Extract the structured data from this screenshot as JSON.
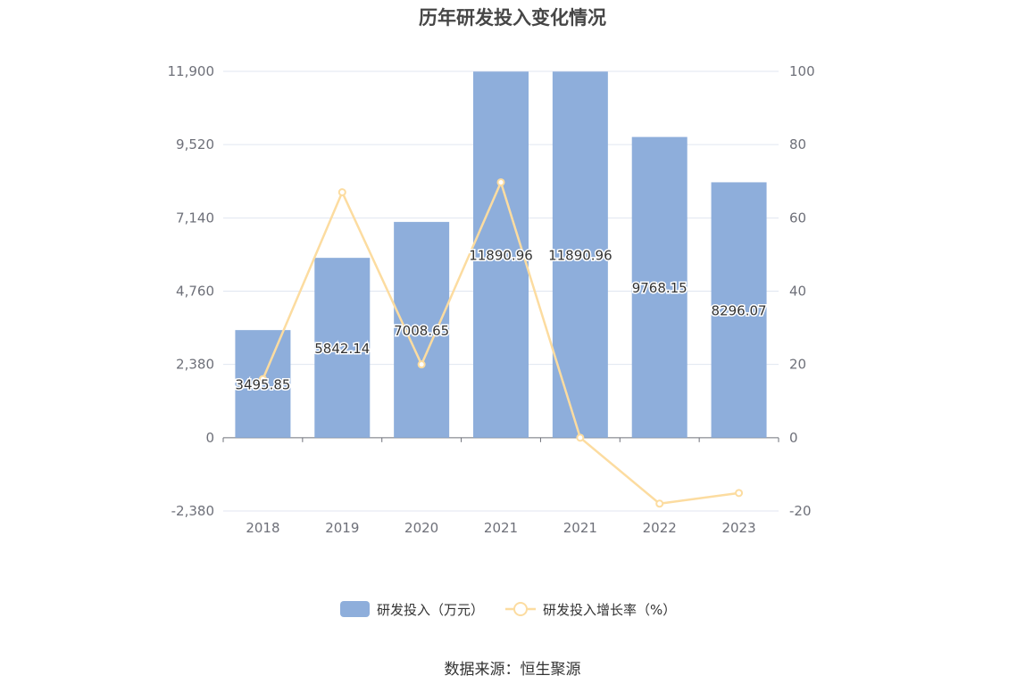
{
  "chart_data": {
    "type": "bar",
    "title": "历年研发投入变化情况",
    "categories": [
      "2018",
      "2019",
      "2020",
      "2021",
      "2021",
      "2022",
      "2023"
    ],
    "series": [
      {
        "name": "研发投入（万元）",
        "type": "bar",
        "axis": "left",
        "values": [
          3495.85,
          5842.14,
          7008.65,
          11890.96,
          11890.96,
          9768.15,
          8296.07
        ],
        "labels": [
          "3495.85",
          "5842.14",
          "7008.65",
          "11890.96",
          "11890.96",
          "9768.15",
          "8296.07"
        ],
        "color": "#8eaedb"
      },
      {
        "name": "研发投入增长率（%）",
        "type": "line",
        "axis": "right",
        "values": [
          16,
          67,
          20,
          69.7,
          0,
          -18,
          -15.1
        ],
        "color": "#fcdca0"
      }
    ],
    "y_left": {
      "ticks": [
        -2380,
        0,
        2380,
        4760,
        7140,
        9520,
        11900
      ],
      "tick_labels": [
        "-2,380",
        "0",
        "2,380",
        "4,760",
        "7,140",
        "9,520",
        "11,900"
      ],
      "range": [
        -2380,
        11900
      ]
    },
    "y_right": {
      "ticks": [
        -20,
        0,
        20,
        40,
        60,
        80,
        100
      ],
      "tick_labels": [
        "-20",
        "0",
        "20",
        "40",
        "60",
        "80",
        "100"
      ],
      "range": [
        -20,
        100
      ]
    },
    "grid": true,
    "legend_position": "bottom-center"
  },
  "source": "数据来源：恒生聚源"
}
